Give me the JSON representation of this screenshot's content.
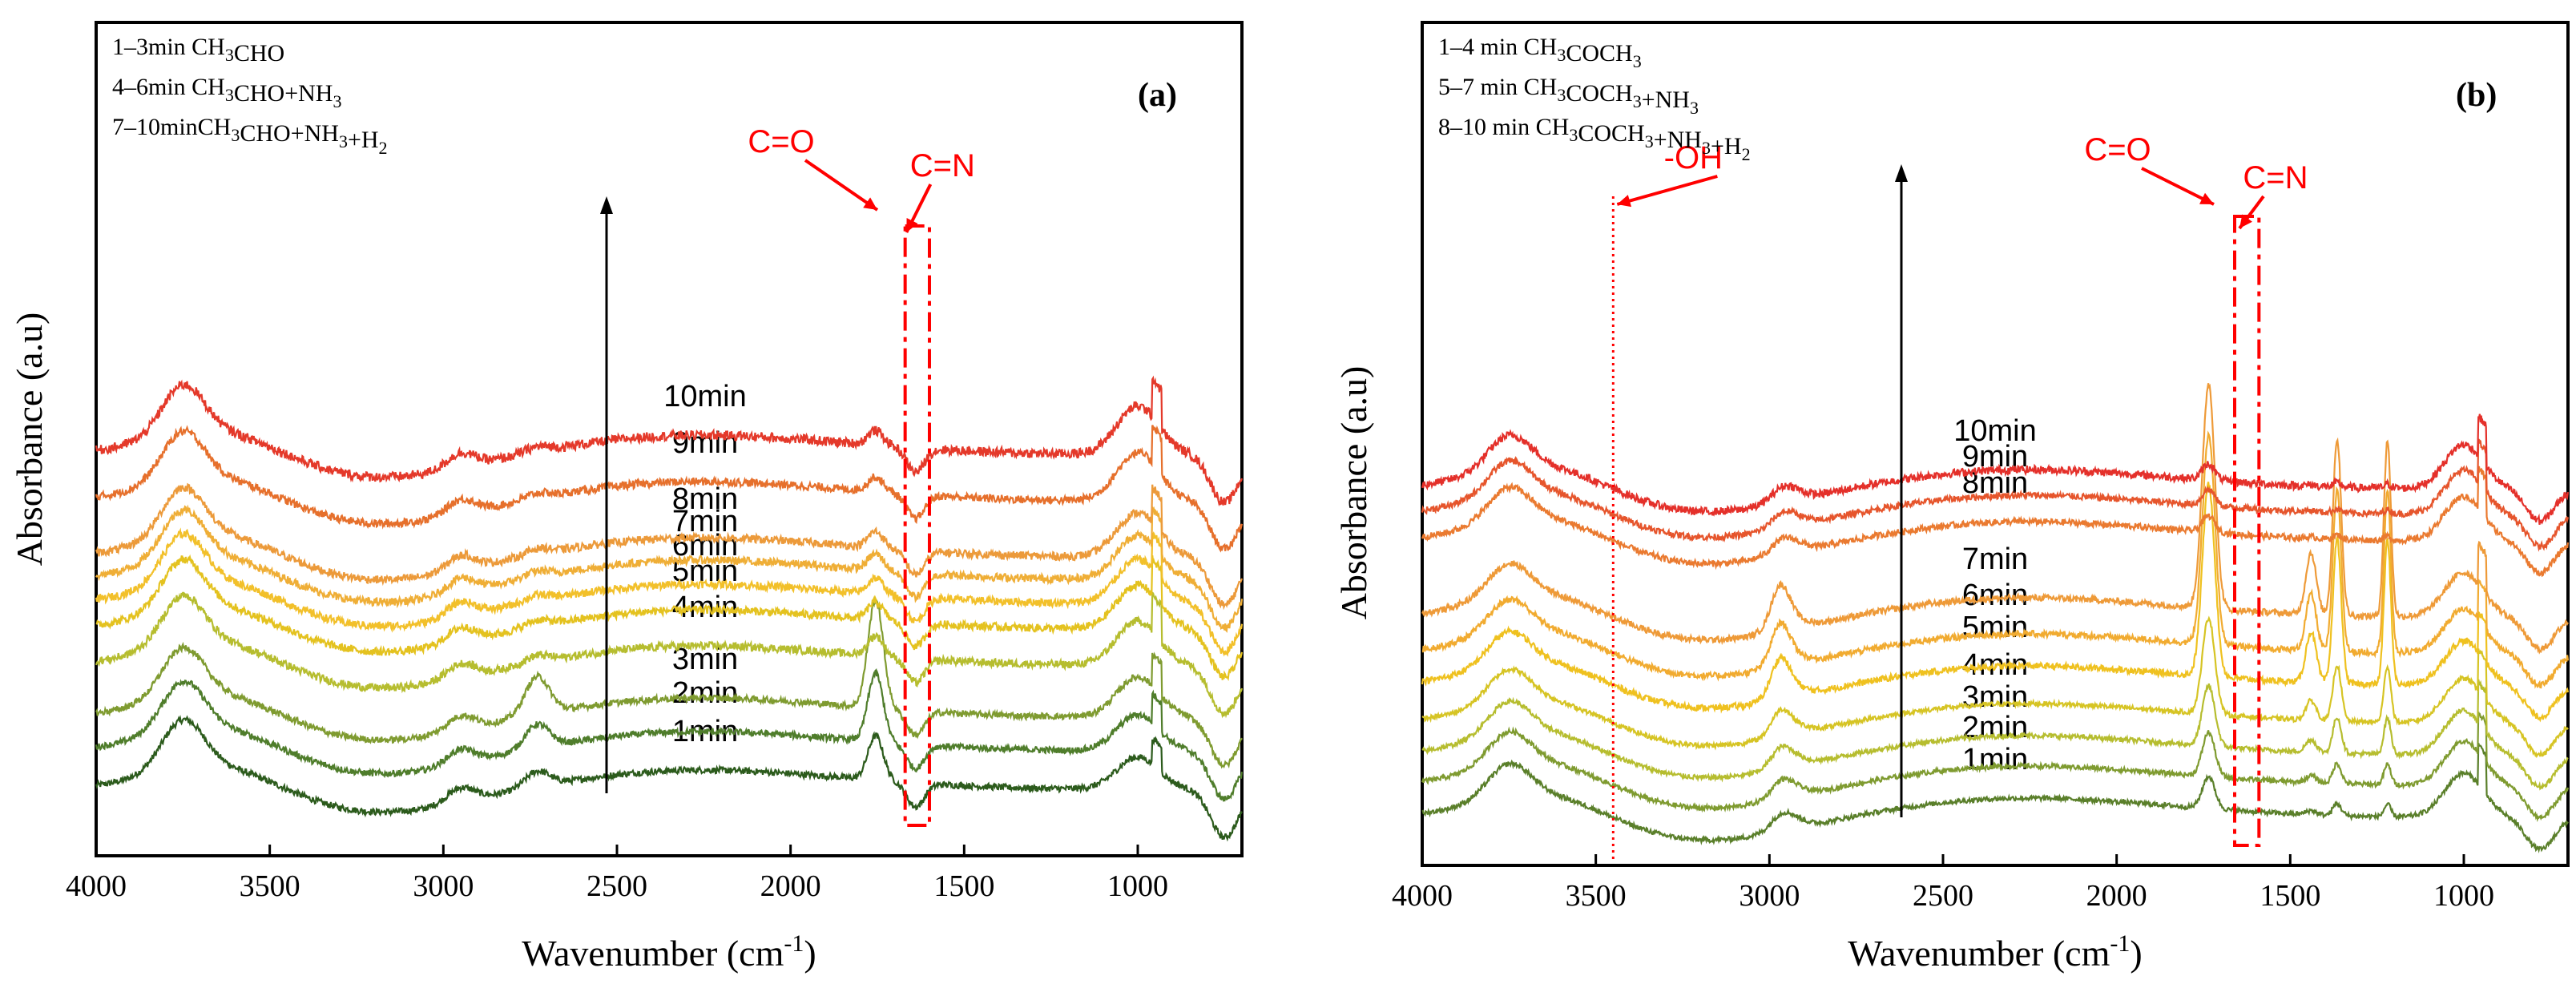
{
  "chart_data": [
    {
      "panel": "a",
      "type": "line",
      "panel_label": "(a)",
      "xlabel": "Wavenumber (cm⁻¹)",
      "xlabel_text": "Wavenumber (cm",
      "xlabel_sup": "-1",
      "ylabel": "Absorbance (a.u)",
      "xlim": [
        4000,
        700
      ],
      "xticks": [
        4000,
        3500,
        3000,
        2500,
        2000,
        1500,
        1000
      ],
      "legend": [
        {
          "pre": "1–3min CH",
          "sub": "3",
          "post": "CHO"
        },
        {
          "pre": "4–6min CH",
          "sub": "3",
          "post": "CHO+NH",
          "sub2": "3"
        },
        {
          "pre": "7–10minCH",
          "sub": "3",
          "post": "CHO+NH",
          "sub2": "3",
          "post2": "+H",
          "sub3": "2"
        }
      ],
      "annotations": [
        {
          "text": "C=O",
          "x": 1750
        },
        {
          "text": "C=N",
          "x": 1620
        }
      ],
      "series": [
        {
          "name": "1min",
          "color": "#2c5b1c",
          "offset": 0,
          "peak_co": 55,
          "peak_1000": 40,
          "noise": 4
        },
        {
          "name": "2min",
          "color": "#4f7d2b",
          "offset": 48,
          "peak_co": 85,
          "peak_1000": 45,
          "noise": 4
        },
        {
          "name": "3min",
          "color": "#7f9b30",
          "offset": 90,
          "peak_co": 135,
          "peak_1000": 50,
          "noise": 4
        },
        {
          "name": "4min",
          "color": "#b6bd2f",
          "offset": 155,
          "peak_co": 25,
          "peak_1000": 55,
          "noise": 5
        },
        {
          "name": "5min",
          "color": "#e4c21f",
          "offset": 200,
          "peak_co": 22,
          "peak_1000": 55,
          "noise": 5
        },
        {
          "name": "6min",
          "color": "#f2c02a",
          "offset": 232,
          "peak_co": 20,
          "peak_1000": 55,
          "noise": 5
        },
        {
          "name": "7min",
          "color": "#efae36",
          "offset": 262,
          "peak_co": 20,
          "peak_1000": 55,
          "noise": 5
        },
        {
          "name": "8min",
          "color": "#ec9a3a",
          "offset": 290,
          "peak_co": 20,
          "peak_1000": 55,
          "noise": 5
        },
        {
          "name": "9min",
          "color": "#e6702c",
          "offset": 360,
          "peak_co": 18,
          "peak_1000": 60,
          "noise": 5
        },
        {
          "name": "10min",
          "color": "#e4392a",
          "offset": 418,
          "peak_co": 18,
          "peak_1000": 60,
          "noise": 6
        }
      ]
    },
    {
      "panel": "b",
      "type": "line",
      "panel_label": "(b)",
      "xlabel": "Wavenumber (cm⁻¹)",
      "xlabel_text": "Wavenumber (cm",
      "xlabel_sup": "-1",
      "ylabel": "Absorbance (a.u)",
      "xlim": [
        4000,
        700
      ],
      "xticks": [
        4000,
        3500,
        3000,
        2500,
        2000,
        1500,
        1000
      ],
      "legend": [
        {
          "pre": "1–4 min CH",
          "sub": "3",
          "post": "COCH",
          "sub2": "3"
        },
        {
          "pre": "5–7 min CH",
          "sub": "3",
          "post": "COCH",
          "sub2": "3",
          "post2": "+NH",
          "sub3": "3"
        },
        {
          "pre": "8–10 min CH",
          "sub": "3",
          "post": "COCH",
          "sub2": "3",
          "post2": "+NH",
          "sub3": "3",
          "post3": "+H",
          "sub4": "2"
        }
      ],
      "annotations": [
        {
          "text": "C=O",
          "x": 1720
        },
        {
          "text": "C=N",
          "x": 1600
        },
        {
          "text": "-OH",
          "x": 3450
        }
      ],
      "series": [
        {
          "name": "1min",
          "color": "#5a7f2a",
          "offset": 0,
          "peak_co": 40,
          "peak_1360": 15,
          "peak_1220": 15,
          "noise": 3
        },
        {
          "name": "2min",
          "color": "#7f9b30",
          "offset": 40,
          "peak_co": 55,
          "peak_1360": 25,
          "peak_1220": 25,
          "noise": 3
        },
        {
          "name": "3min",
          "color": "#b6bd2f",
          "offset": 78,
          "peak_co": 75,
          "peak_1360": 45,
          "peak_1220": 45,
          "noise": 3
        },
        {
          "name": "4min",
          "color": "#d6c424",
          "offset": 118,
          "peak_co": 120,
          "peak_1360": 70,
          "peak_1220": 70,
          "noise": 3
        },
        {
          "name": "5min",
          "color": "#efc11f",
          "offset": 165,
          "peak_co": 240,
          "peak_1360": 180,
          "peak_1220": 180,
          "noise": 4
        },
        {
          "name": "6min",
          "color": "#f1ab30",
          "offset": 205,
          "peak_co": 260,
          "peak_1360": 200,
          "peak_1220": 200,
          "noise": 4
        },
        {
          "name": "7min",
          "color": "#ee9a38",
          "offset": 250,
          "peak_co": 280,
          "peak_1360": 220,
          "peak_1220": 220,
          "noise": 4
        },
        {
          "name": "8min",
          "color": "#ea7a30",
          "offset": 345,
          "peak_co": 20,
          "peak_1360": 5,
          "peak_1220": 5,
          "noise": 4
        },
        {
          "name": "9min",
          "color": "#e6552c",
          "offset": 378,
          "peak_co": 20,
          "peak_1360": 5,
          "peak_1220": 5,
          "noise": 4
        },
        {
          "name": "10min",
          "color": "#e4302a",
          "offset": 410,
          "peak_co": 20,
          "peak_1360": 5,
          "peak_1220": 5,
          "noise": 5
        }
      ]
    }
  ]
}
